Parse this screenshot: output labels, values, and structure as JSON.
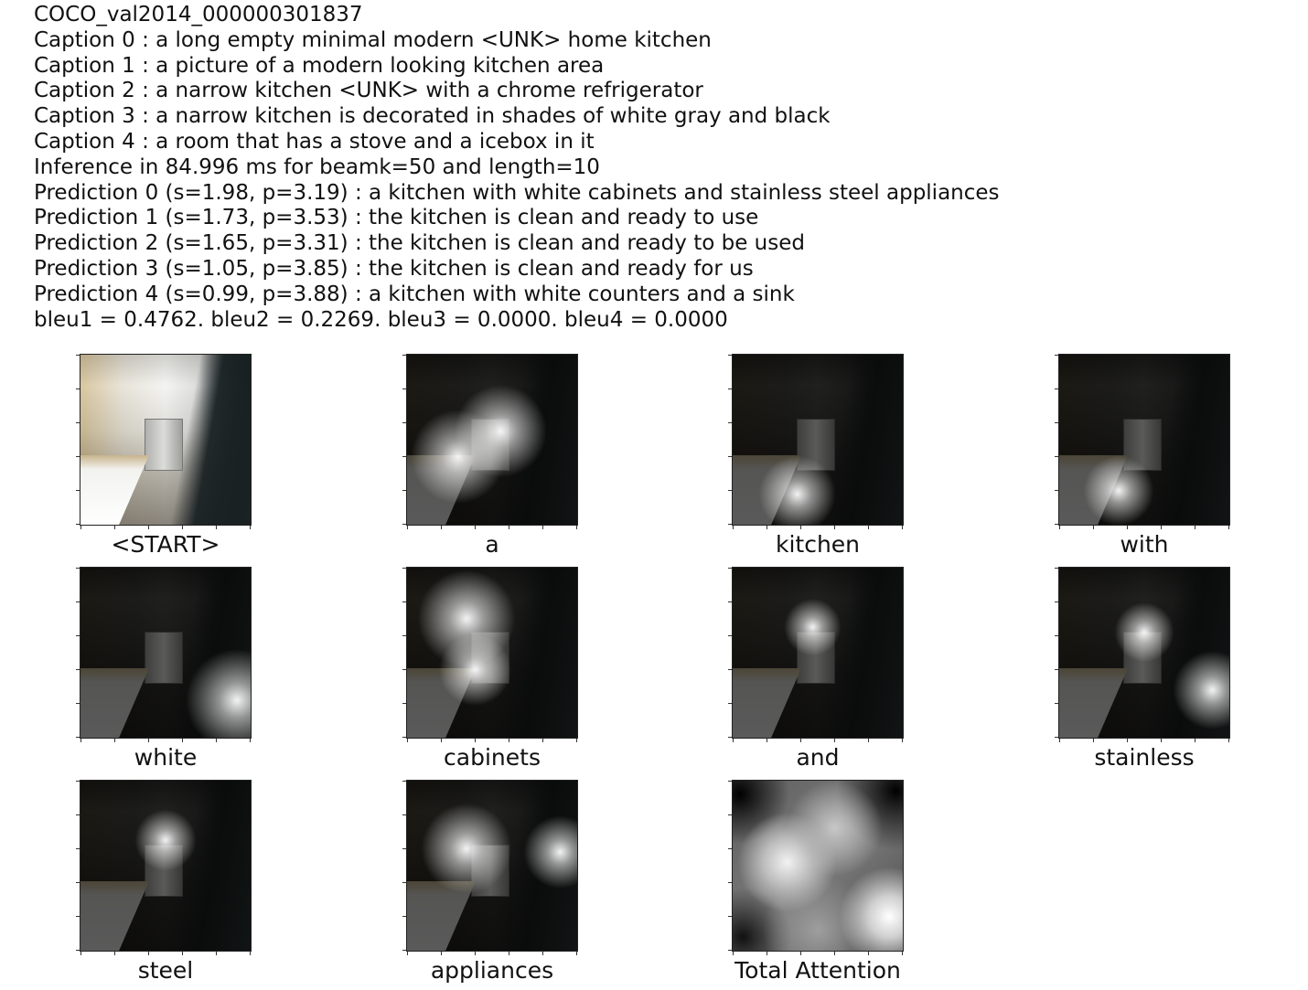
{
  "header": {
    "lines": [
      "COCO_val2014_000000301837",
      "Caption 0 : a long empty minimal modern <UNK> home kitchen",
      "Caption 1 : a picture of a modern looking kitchen area",
      "Caption 2 : a narrow kitchen <UNK> with a chrome refrigerator",
      "Caption 3 : a narrow kitchen is decorated in shades of white gray and black",
      "Caption 4 : a room that has a stove and a icebox in it",
      "Inference in 84.996 ms for beamk=50 and length=10",
      "Prediction 0 (s=1.98, p=3.19) : a kitchen with white cabinets and stainless steel appliances",
      "Prediction 1 (s=1.73, p=3.53) : the kitchen is clean and ready to use",
      "Prediction 2 (s=1.65, p=3.31) : the kitchen is clean and ready to be used",
      "Prediction 3 (s=1.05, p=3.85) : the kitchen is clean and ready for us",
      "Prediction 4 (s=0.99, p=3.88) : a kitchen with white counters and a sink",
      "bleu1 = 0.4762. bleu2 = 0.2269. bleu3 = 0.0000. bleu4 = 0.0000"
    ]
  },
  "panels": [
    {
      "label": "<START>"
    },
    {
      "label": "a"
    },
    {
      "label": "kitchen"
    },
    {
      "label": "with"
    },
    {
      "label": "white"
    },
    {
      "label": "cabinets"
    },
    {
      "label": "and"
    },
    {
      "label": "stainless"
    },
    {
      "label": "steel"
    },
    {
      "label": "appliances"
    },
    {
      "label": "Total Attention"
    }
  ]
}
